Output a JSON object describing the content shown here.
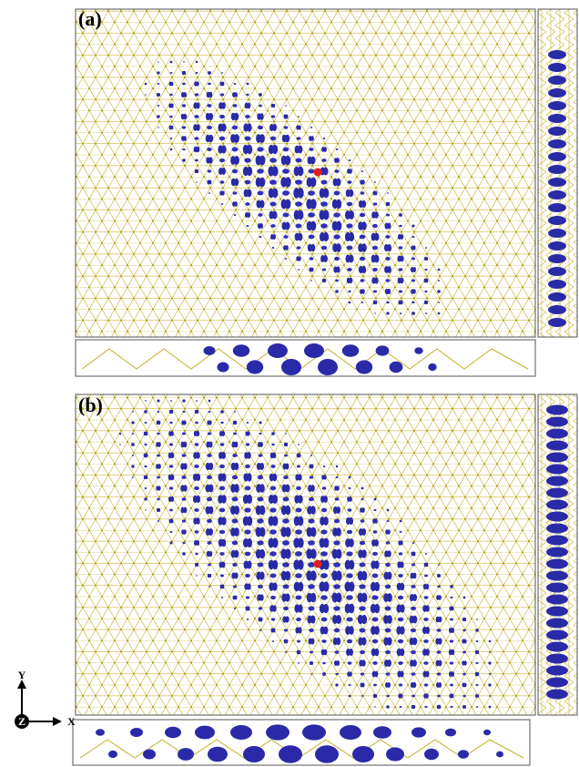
{
  "panels": [
    {
      "label": "(a)"
    },
    {
      "label": "(b)"
    }
  ],
  "axes": {
    "y": "Y",
    "x": "X",
    "z": "Z"
  }
}
